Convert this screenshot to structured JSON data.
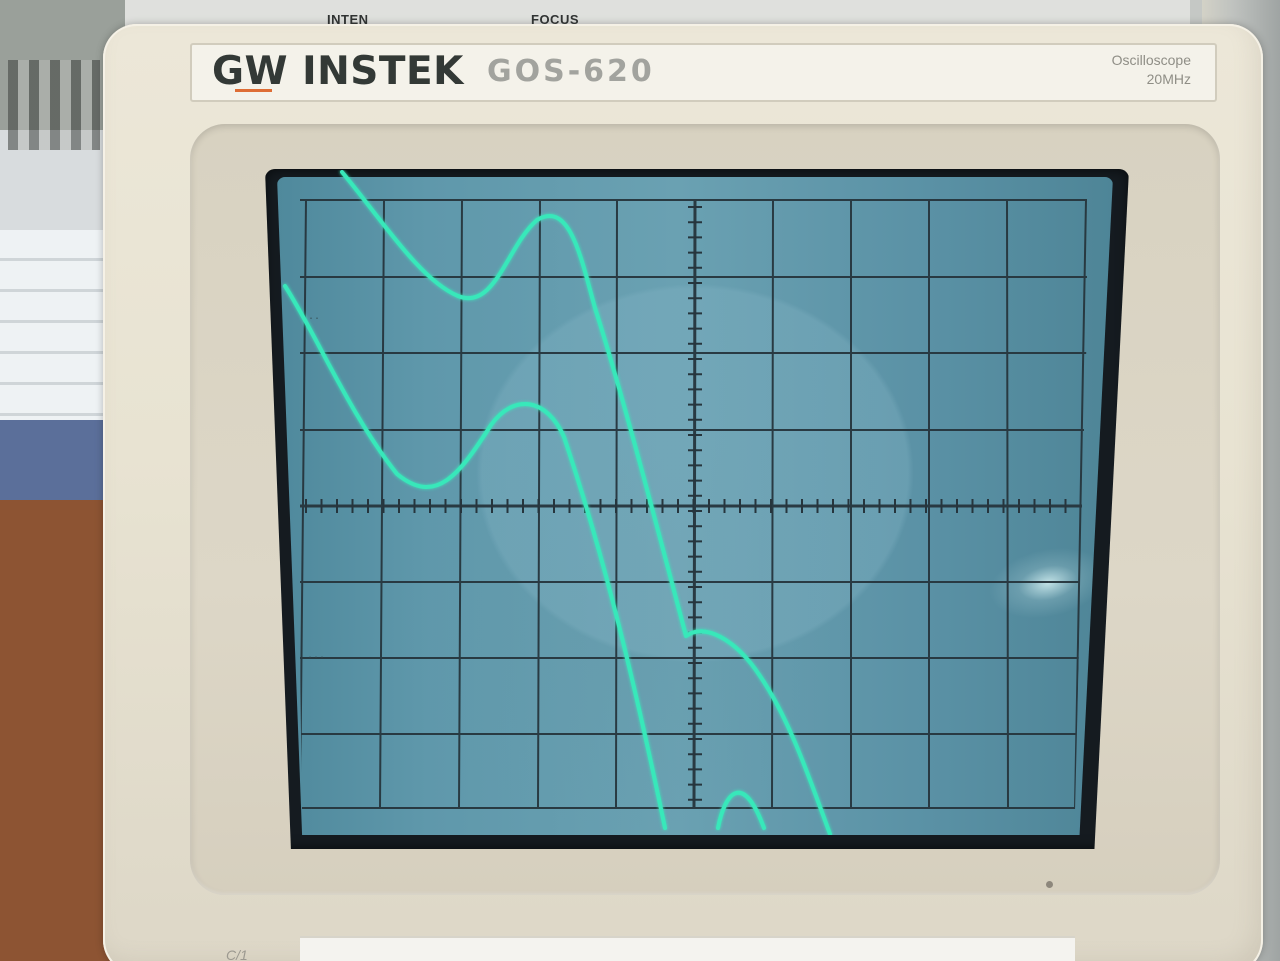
{
  "device": {
    "brand": "GW INSTEK",
    "model": "GOS-620",
    "type": "Oscilloscope",
    "bandwidth": "20MHz"
  },
  "controls": {
    "intensity_label": "INTEN",
    "focus_label": "FOCUS"
  },
  "screen": {
    "vertical_divisions": 8,
    "horizontal_divisions": 10,
    "trace_color": "#38e8ba",
    "grid_color": "#26353d",
    "screen_color": "#5f98ab"
  }
}
